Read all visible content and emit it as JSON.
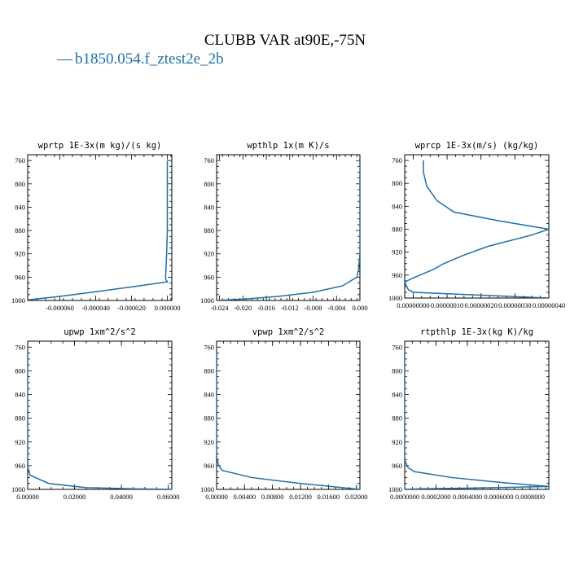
{
  "figure": {
    "title": "CLUBB VAR at90E,-75N",
    "legend_marker": "—",
    "legend_label": "b1850.054.f_ztest2e_2b",
    "series_color": "#1f6fa8"
  },
  "chart_data": [
    {
      "type": "line",
      "title": "wprtp  1E-3x(m kg)/(s kg)",
      "xlim": [
        -7.8e-05,
        2.5e-06
      ],
      "ylim": [
        1000,
        750
      ],
      "x_ticks": [
        "-0.000060",
        "-0.000040",
        "-0.000020",
        "0.000000"
      ],
      "x_tick_values": [
        -6e-05,
        -4e-05,
        -2e-05,
        0.0
      ],
      "y_ticks": [
        "760",
        "800",
        "840",
        "880",
        "920",
        "960",
        "1000"
      ],
      "y_tick_values": [
        760,
        800,
        840,
        880,
        920,
        960,
        1000
      ],
      "series": [
        {
          "x": [
            0.0,
            0.0,
            0.0,
            0.0,
            -4e-07,
            -8e-07,
            -1e-06,
            0.0,
            -1.6e-05,
            -4e-05,
            -6e-05,
            -7.8e-05
          ],
          "y": [
            760,
            800,
            840,
            880,
            920,
            950,
            963,
            968,
            975,
            985,
            993,
            999
          ]
        }
      ]
    },
    {
      "type": "line",
      "title": "wpthlp  1x(m K)/s",
      "xlim": [
        -0.0245,
        0.0
      ],
      "ylim": [
        1000,
        750
      ],
      "x_ticks": [
        "-0.024",
        "-0.020",
        "-0.016",
        "-0.012",
        "-0.008",
        "-0.004",
        "0.000"
      ],
      "x_tick_values": [
        -0.024,
        -0.02,
        -0.016,
        -0.012,
        -0.008,
        -0.004,
        0.0
      ],
      "y_ticks": [
        "760",
        "800",
        "840",
        "880",
        "920",
        "960",
        "1000"
      ],
      "y_tick_values": [
        760,
        800,
        840,
        880,
        920,
        960,
        1000
      ],
      "series": [
        {
          "x": [
            0.0,
            0.0,
            0.0,
            0.0,
            0.0,
            -0.0002,
            -0.0005,
            -0.0015,
            -0.003,
            -0.008,
            -0.014,
            -0.019,
            -0.0245
          ],
          "y": [
            760,
            800,
            840,
            880,
            920,
            945,
            960,
            966,
            975,
            986,
            993,
            997,
            1000
          ]
        }
      ]
    },
    {
      "type": "line",
      "title": "wprcp  1E-3x(m/s) (kg/kg)",
      "xlim": [
        -2.5e-08,
        4e-07
      ],
      "ylim": [
        1000,
        750
      ],
      "x_ticks": [
        "0.00000000",
        "0.00000010",
        "0.00000020",
        "0.00000030",
        "0.00000040"
      ],
      "x_tick_values": [
        0.0,
        1e-07,
        2e-07,
        3e-07,
        4e-07
      ],
      "y_ticks": [
        "760",
        "800",
        "840",
        "880",
        "920",
        "960",
        "1000"
      ],
      "y_tick_values": [
        760,
        800,
        840,
        880,
        920,
        960,
        1000
      ],
      "series": [
        {
          "x": [
            3e-08,
            3e-08,
            4e-08,
            7e-08,
            1.2e-07,
            2.5e-07,
            4e-07,
            3.5e-07,
            2.2e-07,
            1.5e-07,
            9e-08,
            6e-08,
            4e-08,
            0.0,
            -2.5e-08,
            -1.5e-08,
            0.0,
            4e-07
          ],
          "y": [
            760,
            780,
            805,
            830,
            850,
            865,
            880,
            890,
            910,
            925,
            940,
            950,
            955,
            965,
            972,
            985,
            990,
            1000
          ]
        }
      ]
    },
    {
      "type": "line",
      "title": "upwp  1xm^2/s^2",
      "xlim": [
        0.0,
        0.0615
      ],
      "ylim": [
        1000,
        750
      ],
      "x_ticks": [
        "0.00000",
        "0.02000",
        "0.04000",
        "0.06000"
      ],
      "x_tick_values": [
        0.0,
        0.02,
        0.04,
        0.06
      ],
      "y_ticks": [
        "760",
        "800",
        "840",
        "880",
        "920",
        "960",
        "1000"
      ],
      "y_tick_values": [
        760,
        800,
        840,
        880,
        920,
        960,
        1000
      ],
      "series": [
        {
          "x": [
            0.0,
            0.0,
            0.0,
            0.0,
            0.0,
            0.0,
            0.0002,
            0.001,
            0.009,
            0.025,
            0.045,
            0.0615
          ],
          "y": [
            760,
            800,
            840,
            880,
            920,
            950,
            965,
            976,
            990,
            997,
            999,
            1000
          ]
        }
      ]
    },
    {
      "type": "line",
      "title": "vpwp  1xm^2/s^2",
      "xlim": [
        0.0,
        0.0205
      ],
      "ylim": [
        1000,
        750
      ],
      "x_ticks": [
        "0.00000",
        "0.00400",
        "0.00800",
        "0.01200",
        "0.01600",
        "0.02000"
      ],
      "x_tick_values": [
        0.0,
        0.004,
        0.008,
        0.012,
        0.016,
        0.02
      ],
      "y_ticks": [
        "760",
        "800",
        "840",
        "880",
        "920",
        "960",
        "1000"
      ],
      "y_tick_values": [
        760,
        800,
        840,
        880,
        920,
        960,
        1000
      ],
      "series": [
        {
          "x": [
            0.0,
            0.0,
            0.0,
            0.0,
            0.0,
            0.0,
            0.0003,
            0.0008,
            0.005,
            0.012,
            0.0205
          ],
          "y": [
            760,
            800,
            840,
            880,
            920,
            945,
            960,
            968,
            980,
            990,
            1000
          ]
        }
      ]
    },
    {
      "type": "line",
      "title": "rtpthlp  1E-3x(kg K)/kg",
      "xlim": [
        0.0,
        0.00092
      ],
      "ylim": [
        1000,
        750
      ],
      "x_ticks": [
        "0.0000000",
        "0.0002000",
        "0.0004000",
        "0.0006000",
        "0.0008000"
      ],
      "x_tick_values": [
        0.0,
        0.0002,
        0.0004,
        0.0006,
        0.0008
      ],
      "y_ticks": [
        "760",
        "800",
        "840",
        "880",
        "920",
        "960",
        "1000"
      ],
      "y_tick_values": [
        760,
        800,
        840,
        880,
        920,
        960,
        1000
      ],
      "series": [
        {
          "x": [
            0.0,
            0.0,
            0.0,
            0.0,
            0.0,
            0.0,
            2e-05,
            6e-05,
            0.0003,
            0.0006,
            0.00092,
            0.0004,
            0.0001,
            0.0
          ],
          "y": [
            760,
            800,
            840,
            880,
            920,
            950,
            963,
            970,
            980,
            988,
            995,
            998,
            999,
            1000
          ]
        }
      ]
    }
  ]
}
